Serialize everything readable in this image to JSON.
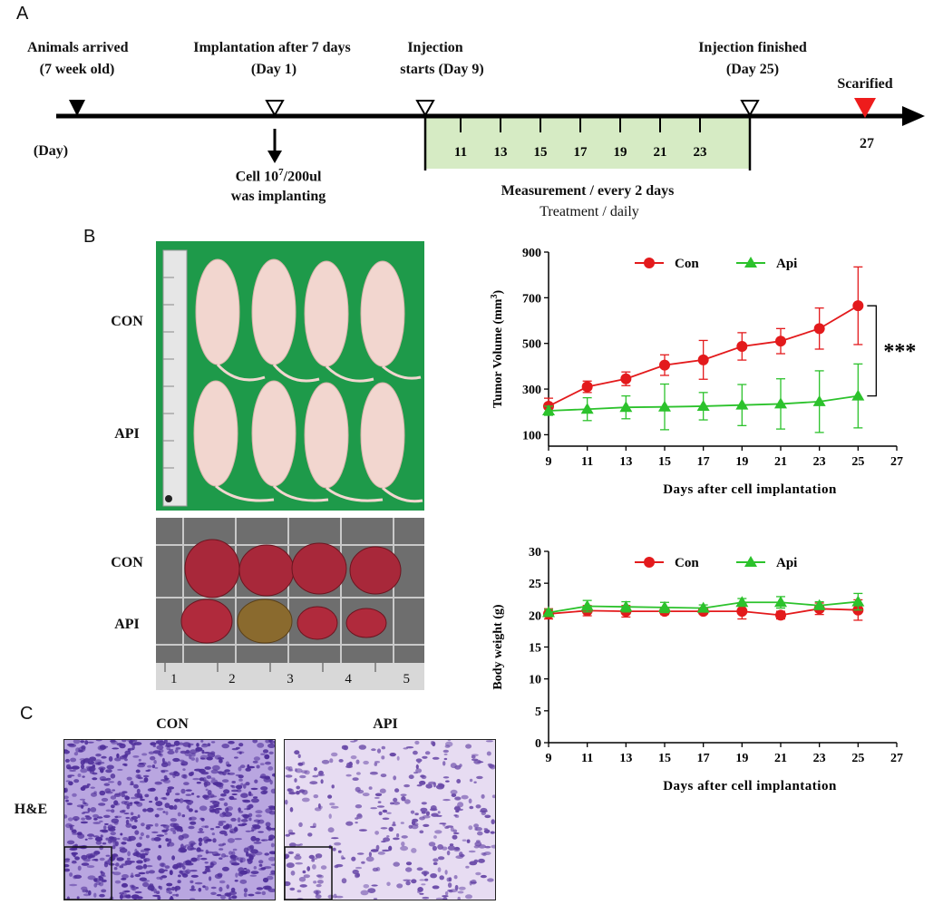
{
  "figure": {
    "panel_a": "A",
    "panel_b": "B",
    "panel_c": "C"
  },
  "timeline": {
    "animals_arrived": "Animals arrived",
    "animals_age": "(7 week old)",
    "implantation": "Implantation  after 7 days",
    "implantation_day": "(Day 1)",
    "injection_starts_1": "Injection",
    "injection_starts_2": "starts (Day 9)",
    "injection_finished_1": "Injection finished",
    "injection_finished_2": "(Day 25)",
    "scarified": "Scarified",
    "day_unit": "(Day)",
    "final_day": "27",
    "cell_line1_a": "Cell 10",
    "cell_line1_sup": "7",
    "cell_line1_b": "/200ul",
    "cell_line2": "was implanting",
    "measurement": "Measurement / every 2 days",
    "treatment": "Treatment / daily",
    "ticks": [
      "11",
      "13",
      "15",
      "17",
      "19",
      "21",
      "23"
    ],
    "colors": {
      "arrow": "#000000",
      "box_fill": "#d6ebc4",
      "sacrifice": "#ee1c1c"
    }
  },
  "photos": {
    "mice_con": "CON",
    "mice_api": "API",
    "tumor_con": "CON",
    "tumor_api": "API",
    "ruler_numbers": [
      "1",
      "2",
      "3",
      "4",
      "5"
    ],
    "he_label": "H&E",
    "he_con": "CON",
    "he_api": "API",
    "colors": {
      "green_bg": "#1e9a4a",
      "tumor": "#b0283a",
      "tissue": "#6c4fb0"
    }
  },
  "chart_data": [
    {
      "type": "line",
      "ylabel": "Tumor Volume (mm",
      "ylabel_sup": "3",
      "ylabel_end": ")",
      "xlabel": "Days after cell implantation",
      "xlim": [
        9,
        27
      ],
      "ylim": [
        50,
        900
      ],
      "yticks": [
        100,
        300,
        500,
        700,
        900
      ],
      "xticks": [
        9,
        11,
        13,
        15,
        17,
        19,
        21,
        23,
        25,
        27
      ],
      "legend_position": "top",
      "significance": "***",
      "series": [
        {
          "name": "Con",
          "color": "#e31a1c",
          "marker": "circle",
          "x": [
            9,
            11,
            13,
            15,
            17,
            19,
            21,
            23,
            25
          ],
          "y": [
            225,
            310,
            345,
            405,
            428,
            487,
            510,
            565,
            665
          ],
          "err": [
            35,
            25,
            30,
            45,
            85,
            60,
            55,
            90,
            170
          ]
        },
        {
          "name": "Api",
          "color": "#2cc22c",
          "marker": "triangle",
          "x": [
            9,
            11,
            13,
            15,
            17,
            19,
            21,
            23,
            25
          ],
          "y": [
            205,
            212,
            220,
            222,
            225,
            230,
            235,
            245,
            270
          ],
          "err": [
            20,
            50,
            50,
            100,
            60,
            90,
            110,
            135,
            140
          ]
        }
      ]
    },
    {
      "type": "line",
      "ylabel": "Body weight (g)",
      "xlabel": "Days after cell implantation",
      "xlim": [
        9,
        27
      ],
      "ylim": [
        0,
        30
      ],
      "yticks": [
        0,
        5,
        10,
        15,
        20,
        25,
        30
      ],
      "xticks": [
        9,
        11,
        13,
        15,
        17,
        19,
        21,
        23,
        25,
        27
      ],
      "legend_position": "top",
      "series": [
        {
          "name": "Con",
          "color": "#e31a1c",
          "marker": "circle",
          "x": [
            9,
            11,
            13,
            15,
            17,
            19,
            21,
            23,
            25
          ],
          "y": [
            20.2,
            20.7,
            20.6,
            20.6,
            20.6,
            20.6,
            20.0,
            21.0,
            20.8
          ],
          "err": [
            0.8,
            0.8,
            0.9,
            0.5,
            0.4,
            1.2,
            0.6,
            0.9,
            1.6
          ]
        },
        {
          "name": "Api",
          "color": "#2cc22c",
          "marker": "triangle",
          "x": [
            9,
            11,
            13,
            15,
            17,
            19,
            21,
            23,
            25
          ],
          "y": [
            20.4,
            21.4,
            21.3,
            21.2,
            21.1,
            22.0,
            22.0,
            21.5,
            22.1
          ],
          "err": [
            0.5,
            0.9,
            0.8,
            0.8,
            0.5,
            0.6,
            0.9,
            0.6,
            1.3
          ]
        }
      ]
    }
  ]
}
